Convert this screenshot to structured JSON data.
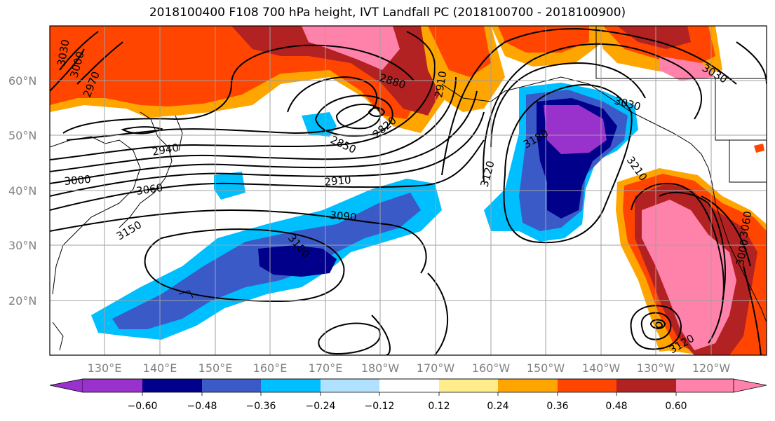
{
  "title": "2018100400 F108 700 hPa height, IVT Landfall PC (2018100700 - 2018100900)",
  "map": {
    "lat_labels": [
      "60°N",
      "50°N",
      "40°N",
      "30°N",
      "20°N"
    ],
    "lon_labels": [
      "130°E",
      "140°E",
      "150°E",
      "160°E",
      "170°E",
      "180°W",
      "170°W",
      "160°W",
      "150°W",
      "140°W",
      "130°W",
      "120°W"
    ],
    "height_contour_labels": [
      "3030",
      "3000",
      "2970",
      "2940",
      "3000",
      "3060",
      "3150",
      "2880",
      "2910",
      "2820",
      "2850",
      "2910",
      "3090",
      "3180",
      "3120",
      "3180",
      "3210",
      "3030",
      "3060",
      "3000",
      "3120",
      "3030"
    ],
    "ivt_pc_colors": {
      "very_neg": "#9932CC",
      "neg_060": "#00008B",
      "neg_048": "#3A5BC7",
      "neg_036": "#00BFFF",
      "neg_024": "#B0E2FF",
      "neutral": "#FFFFFF",
      "pos_012": "#FFEC8B",
      "pos_024": "#FFA500",
      "pos_036": "#FF4500",
      "pos_048": "#B22222",
      "pos_060": "#FF82AB"
    }
  },
  "colorbar": {
    "ticks": [
      "−0.60",
      "−0.48",
      "−0.36",
      "−0.24",
      "−0.12",
      "0.12",
      "0.24",
      "0.36",
      "0.48",
      "0.60"
    ],
    "colors": [
      "#9932CC",
      "#00008B",
      "#3A5BC7",
      "#00BFFF",
      "#B0E2FF",
      "#FFFFFF",
      "#FFFFFF",
      "#FFEC8B",
      "#FFA500",
      "#FF4500",
      "#B22222",
      "#FF82AB"
    ]
  }
}
